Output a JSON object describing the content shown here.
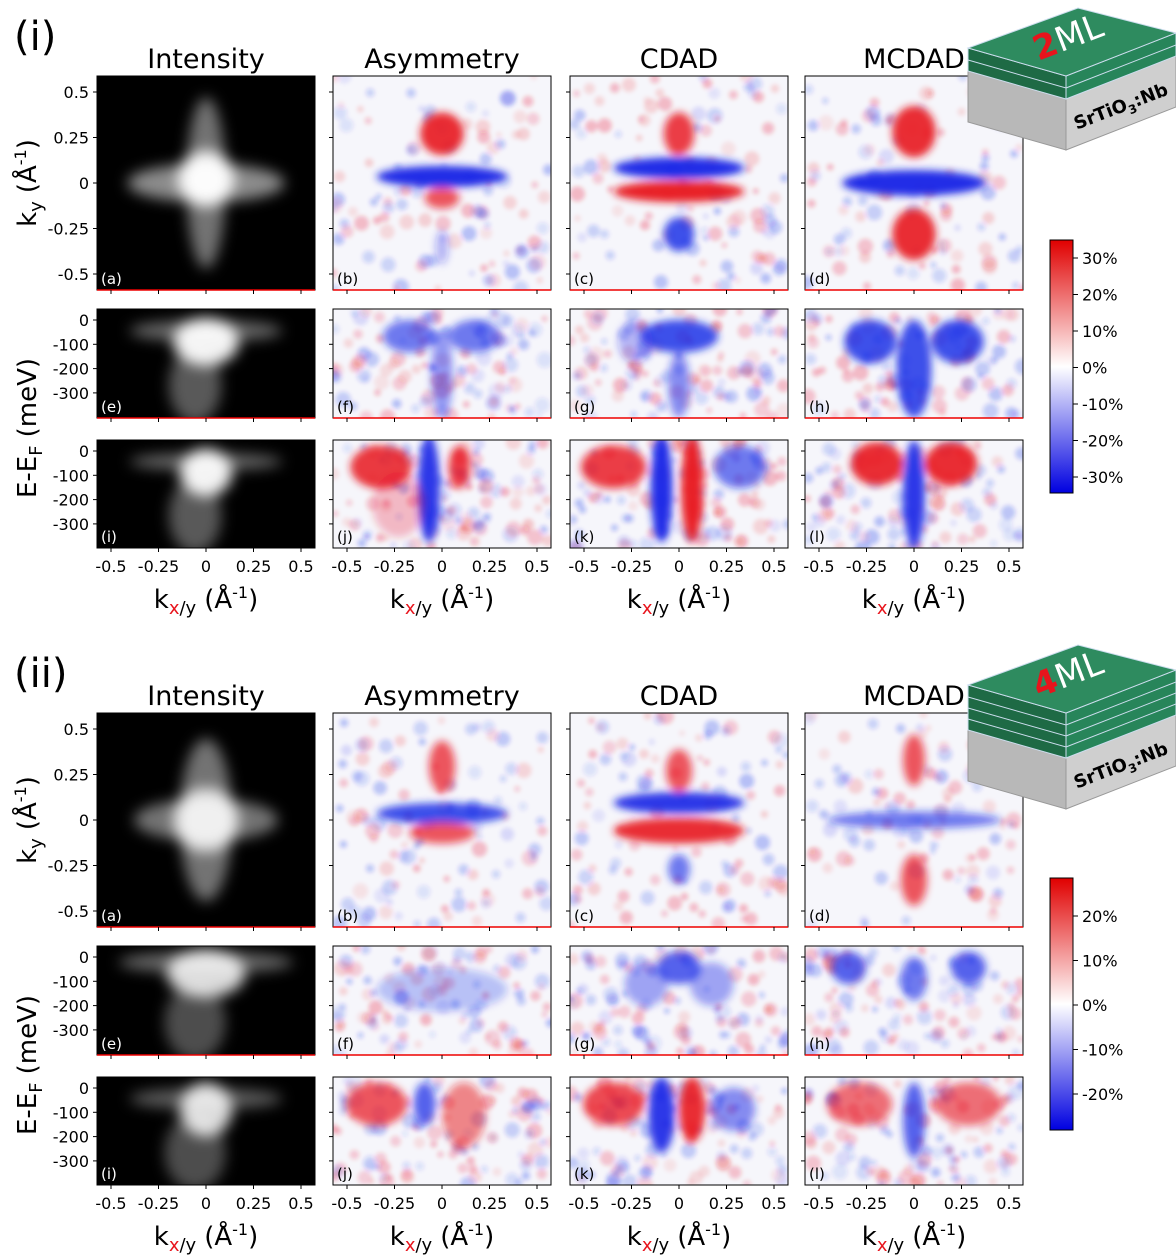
{
  "sections": [
    {
      "label": "(i)",
      "badge": {
        "number": "2",
        "unit": "ML"
      },
      "colorbar_ticks": [
        "30%",
        "20%",
        "10%",
        "0%",
        "-10%",
        "-20%",
        "-30%"
      ]
    },
    {
      "label": "(ii)",
      "badge": {
        "number": "4",
        "unit": "ML"
      },
      "colorbar_ticks": [
        "20%",
        "10%",
        "0%",
        "-10%",
        "-20%"
      ]
    }
  ],
  "column_titles": [
    "Intensity",
    "Asymmetry",
    "CDAD",
    "MCDAD"
  ],
  "panel_letters": [
    "(a)",
    "(b)",
    "(c)",
    "(d)",
    "(e)",
    "(f)",
    "(g)",
    "(h)",
    "(i)",
    "(j)",
    "(k)",
    "(l)"
  ],
  "ky_ticks": [
    "0.5",
    "0.25",
    "0",
    "-0.25",
    "-0.5"
  ],
  "energy_ticks": [
    "0",
    "-100",
    "-200",
    "-300"
  ],
  "kx_ticks": [
    "-0.5",
    "-0.25",
    "0",
    "0.25",
    "0.5"
  ],
  "ky_label": {
    "symbol": "k",
    "subscript": "y",
    "unit": "(Å",
    "exponent": "-1",
    "close": ")"
  },
  "energy_label": {
    "symbol": "E-E",
    "subscript": "F",
    "unit": "(meV)"
  },
  "kx_label": {
    "symbol": "k",
    "highlight": "x",
    "rest": "/y",
    "unit": "(Å",
    "exponent": "-1",
    "close": ")"
  },
  "substrate": {
    "formula": "SrTiO",
    "subscript": "3",
    "dopant": ":Nb"
  }
}
